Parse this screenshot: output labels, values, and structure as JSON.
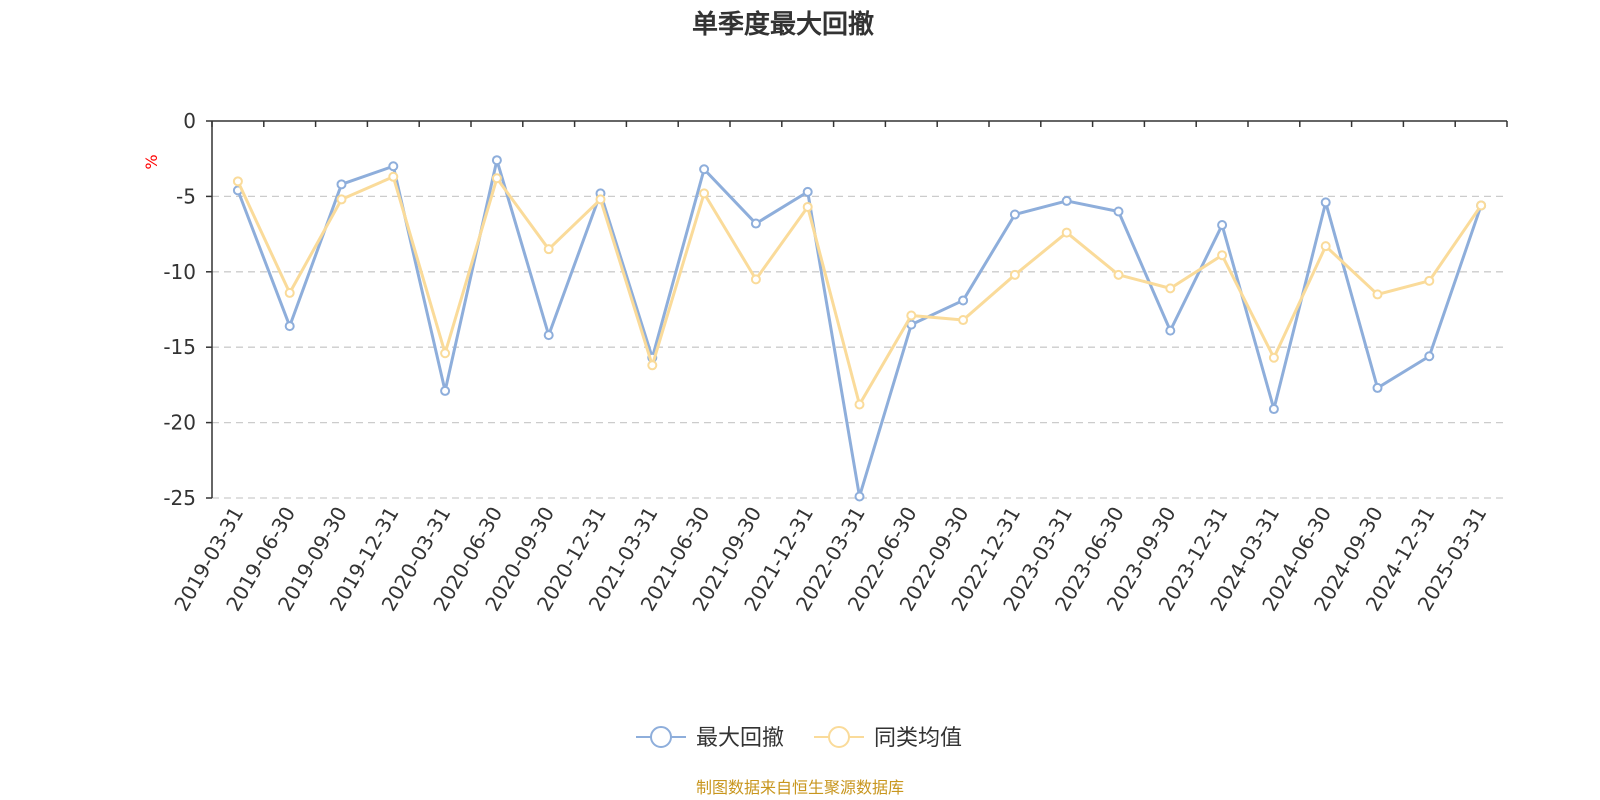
{
  "chart_data": {
    "type": "line",
    "title": "单季度最大回撤",
    "ylabel": "%",
    "ylim": [
      -25,
      0
    ],
    "yticks": [
      0,
      -5,
      -10,
      -15,
      -20,
      -25
    ],
    "grid": true,
    "legend_position": "bottom-center",
    "categories": [
      "2019-03-31",
      "2019-06-30",
      "2019-09-30",
      "2019-12-31",
      "2020-03-31",
      "2020-06-30",
      "2020-09-30",
      "2020-12-31",
      "2021-03-31",
      "2021-06-30",
      "2021-09-30",
      "2021-12-31",
      "2022-03-31",
      "2022-06-30",
      "2022-09-30",
      "2022-12-31",
      "2023-03-31",
      "2023-06-30",
      "2023-09-30",
      "2023-12-31",
      "2024-03-31",
      "2024-06-30",
      "2024-09-30",
      "2024-12-31",
      "2025-03-31"
    ],
    "series": [
      {
        "name": "最大回撤",
        "color": "#8eaedb",
        "values": [
          -4.6,
          -13.6,
          -4.2,
          -3.0,
          -17.9,
          -2.6,
          -14.2,
          -4.8,
          -15.7,
          -3.2,
          -6.8,
          -4.7,
          -24.9,
          -13.5,
          -11.9,
          -6.2,
          -5.3,
          -6.0,
          -13.9,
          -6.9,
          -19.1,
          -5.4,
          -17.7,
          -15.6,
          -5.6
        ]
      },
      {
        "name": "同类均值",
        "color": "#fadb9a",
        "values": [
          -4.0,
          -11.4,
          -5.2,
          -3.7,
          -15.4,
          -3.8,
          -8.5,
          -5.2,
          -16.2,
          -4.8,
          -10.5,
          -5.7,
          -18.8,
          -12.9,
          -13.2,
          -10.2,
          -7.4,
          -10.2,
          -11.1,
          -8.9,
          -15.7,
          -8.3,
          -11.5,
          -10.6,
          -5.6
        ]
      }
    ],
    "source": "制图数据来自恒生聚源数据库",
    "colors": {
      "axis": "#333333",
      "grid": "#cccccc",
      "unit": "#ff0000",
      "source": "#c8961e"
    }
  }
}
